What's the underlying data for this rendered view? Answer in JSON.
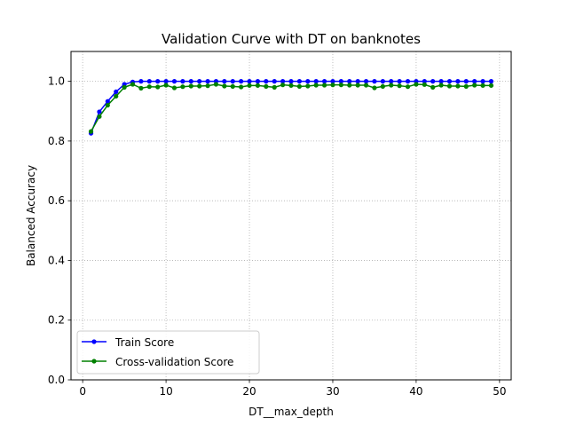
{
  "chart_data": {
    "type": "line",
    "title": "Validation Curve with DT on banknotes",
    "xlabel": "DT__max_depth",
    "ylabel": "Balanced Accuracy",
    "xlim": [
      -1.4,
      51.4
    ],
    "ylim": [
      0.0,
      1.1
    ],
    "xticks": [
      0,
      10,
      20,
      30,
      40,
      50
    ],
    "yticks": [
      0.0,
      0.2,
      0.4,
      0.6,
      0.8,
      1.0
    ],
    "xtick_labels": [
      "0",
      "10",
      "20",
      "30",
      "40",
      "50"
    ],
    "ytick_labels": [
      "0.0",
      "0.2",
      "0.4",
      "0.6",
      "0.8",
      "1.0"
    ],
    "grid": true,
    "legend_position": "lower-left",
    "x": [
      1,
      2,
      3,
      4,
      5,
      6,
      7,
      8,
      9,
      10,
      11,
      12,
      13,
      14,
      15,
      16,
      17,
      18,
      19,
      20,
      21,
      22,
      23,
      24,
      25,
      26,
      27,
      28,
      29,
      30,
      31,
      32,
      33,
      34,
      35,
      36,
      37,
      38,
      39,
      40,
      41,
      42,
      43,
      44,
      45,
      46,
      47,
      48,
      49
    ],
    "series": [
      {
        "name": "Train Score",
        "color": "#0000ff",
        "values": [
          0.826,
          0.898,
          0.933,
          0.965,
          0.99,
          0.998,
          1.0,
          1.0,
          1.0,
          1.0,
          1.0,
          1.0,
          1.0,
          1.0,
          1.0,
          1.0,
          1.0,
          1.0,
          1.0,
          1.0,
          1.0,
          1.0,
          1.0,
          1.0,
          1.0,
          1.0,
          1.0,
          1.0,
          1.0,
          1.0,
          1.0,
          1.0,
          1.0,
          1.0,
          1.0,
          1.0,
          1.0,
          1.0,
          1.0,
          1.0,
          1.0,
          1.0,
          1.0,
          1.0,
          1.0,
          1.0,
          1.0,
          1.0,
          1.0
        ]
      },
      {
        "name": "Cross-validation Score",
        "color": "#008000",
        "values": [
          0.832,
          0.882,
          0.92,
          0.95,
          0.98,
          0.99,
          0.977,
          0.982,
          0.981,
          0.987,
          0.978,
          0.982,
          0.984,
          0.984,
          0.985,
          0.99,
          0.984,
          0.983,
          0.981,
          0.986,
          0.986,
          0.983,
          0.98,
          0.988,
          0.986,
          0.983,
          0.984,
          0.987,
          0.987,
          0.988,
          0.988,
          0.987,
          0.987,
          0.987,
          0.978,
          0.983,
          0.987,
          0.985,
          0.982,
          0.99,
          0.989,
          0.98,
          0.987,
          0.984,
          0.984,
          0.983,
          0.987,
          0.986,
          0.986
        ]
      }
    ]
  }
}
